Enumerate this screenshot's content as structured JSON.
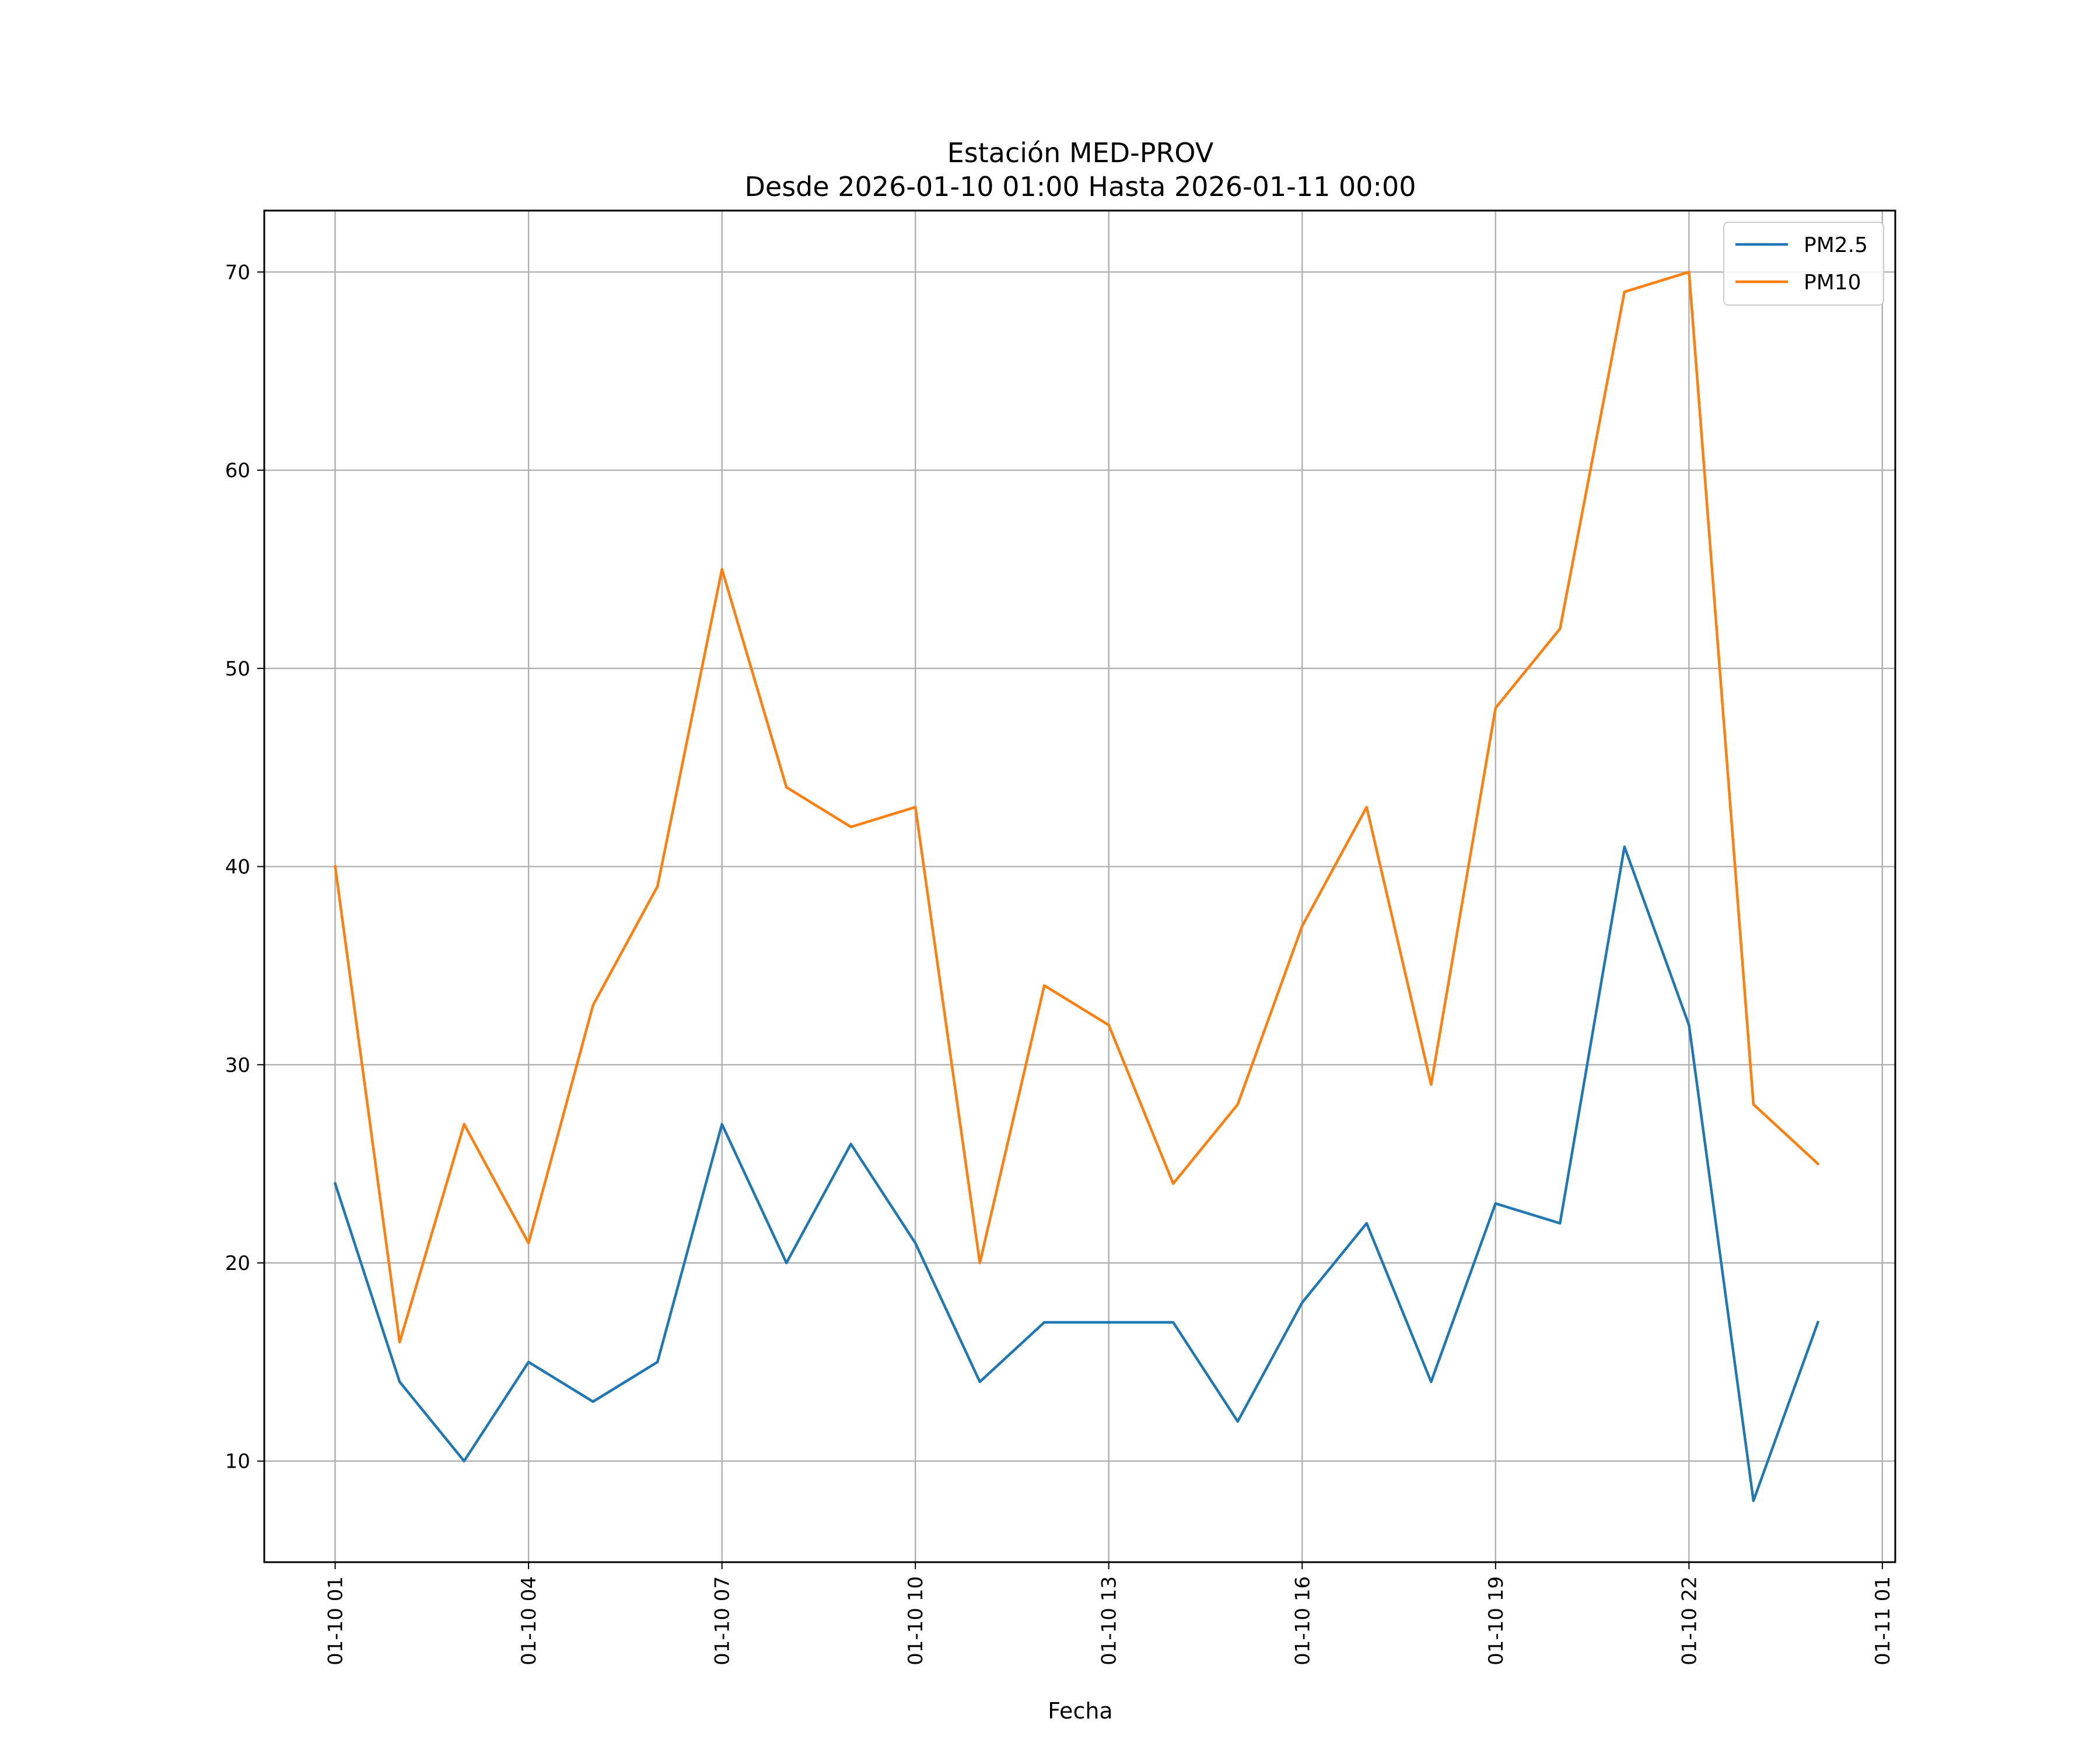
{
  "chart_data": {
    "type": "line",
    "title": "Estación MED-PROV",
    "subtitle": "Desde 2026-01-10 01:00 Hasta 2026-01-11 00:00",
    "xlabel": "Fecha",
    "ylabel": "",
    "x": [
      "01-10 01",
      "01-10 02",
      "01-10 03",
      "01-10 04",
      "01-10 05",
      "01-10 06",
      "01-10 07",
      "01-10 08",
      "01-10 09",
      "01-10 10",
      "01-10 11",
      "01-10 12",
      "01-10 13",
      "01-10 14",
      "01-10 15",
      "01-10 16",
      "01-10 17",
      "01-10 18",
      "01-10 19",
      "01-10 20",
      "01-10 21",
      "01-10 22",
      "01-10 23",
      "01-11 00"
    ],
    "x_hours": [
      1,
      2,
      3,
      4,
      5,
      6,
      7,
      8,
      9,
      10,
      11,
      12,
      13,
      14,
      15,
      16,
      17,
      18,
      19,
      20,
      21,
      22,
      23,
      24
    ],
    "xlim": [
      -0.1,
      25.2
    ],
    "x_ticks": [
      {
        "hour": 1,
        "label": "01-10 01"
      },
      {
        "hour": 4,
        "label": "01-10 04"
      },
      {
        "hour": 7,
        "label": "01-10 07"
      },
      {
        "hour": 10,
        "label": "01-10 10"
      },
      {
        "hour": 13,
        "label": "01-10 13"
      },
      {
        "hour": 16,
        "label": "01-10 16"
      },
      {
        "hour": 19,
        "label": "01-10 19"
      },
      {
        "hour": 22,
        "label": "01-10 22"
      },
      {
        "hour": 25,
        "label": "01-11 01"
      }
    ],
    "ylim": [
      4.9,
      73.1
    ],
    "y_ticks": [
      10,
      20,
      30,
      40,
      50,
      60,
      70
    ],
    "grid": true,
    "legend_position": "top-right",
    "series": [
      {
        "name": "PM2.5",
        "color": "#1f77b4",
        "values": [
          24,
          14,
          10,
          15,
          13,
          15,
          27,
          20,
          26,
          21,
          14,
          17,
          17,
          17,
          12,
          18,
          22,
          14,
          23,
          22,
          41,
          32,
          8,
          17
        ]
      },
      {
        "name": "PM10",
        "color": "#ff7f0e",
        "values": [
          40,
          16,
          27,
          21,
          33,
          39,
          55,
          44,
          42,
          43,
          20,
          34,
          32,
          24,
          28,
          37,
          43,
          29,
          48,
          52,
          69,
          70,
          28,
          25
        ]
      }
    ]
  }
}
